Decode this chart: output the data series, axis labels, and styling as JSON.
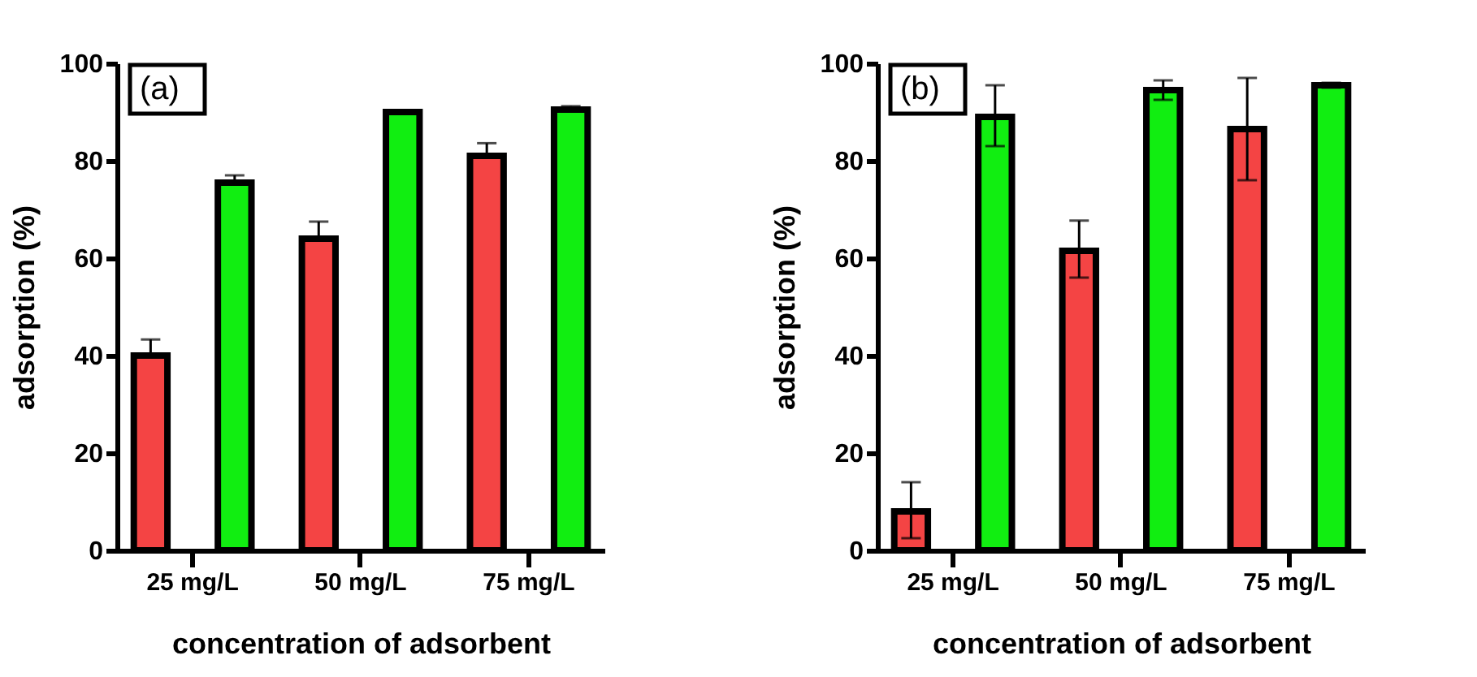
{
  "chart_data": [
    {
      "type": "bar",
      "xlabel": "concentration of adsorbent",
      "ylabel": "adsorption (%)",
      "annotations": [
        "(a)"
      ],
      "categories": [
        "25 mg/L",
        "50 mg/L",
        "75 mg/L"
      ],
      "ylim": [
        0,
        100
      ],
      "yticks": [
        0,
        20,
        40,
        60,
        80,
        100
      ],
      "grid": false,
      "series": [
        {
          "color": "#f44444",
          "values": [
            40,
            64,
            81
          ],
          "errors": [
            [
              40,
              43.3
            ],
            [
              64,
              67.5
            ],
            [
              81,
              83.6
            ]
          ]
        },
        {
          "color": "#11ee11",
          "values": [
            75.5,
            90,
            90.5
          ],
          "errors": [
            [
              75.5,
              77
            ],
            [
              90,
              90.3
            ],
            [
              90.5,
              91.2
            ]
          ]
        }
      ]
    },
    {
      "type": "bar",
      "xlabel": "concentration of adsorbent",
      "ylabel": "adsorption (%)",
      "annotations": [
        "(b)"
      ],
      "categories": [
        "25 mg/L",
        "50 mg/L",
        "75 mg/L"
      ],
      "ylim": [
        0,
        100
      ],
      "yticks": [
        0,
        20,
        40,
        60,
        80,
        100
      ],
      "grid": false,
      "series": [
        {
          "color": "#f44444",
          "values": [
            8,
            61.5,
            86.5
          ],
          "errors": [
            [
              2.5,
              14
            ],
            [
              56,
              67.7
            ],
            [
              76,
              97
            ]
          ]
        },
        {
          "color": "#11ee11",
          "values": [
            89,
            94.5,
            95.5
          ],
          "errors": [
            [
              83,
              95.5
            ],
            [
              92.5,
              96.5
            ],
            [
              95,
              96
            ]
          ]
        }
      ]
    }
  ]
}
